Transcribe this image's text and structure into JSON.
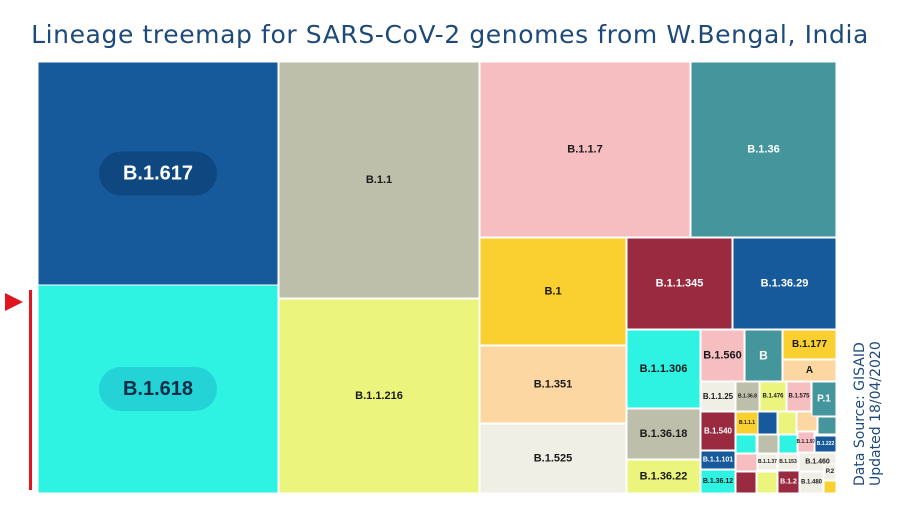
{
  "chart_data": {
    "type": "treemap",
    "title": "Lineage treemap for SARS-CoV-2 genomes from W.Bengal, India",
    "note": "Area values estimated from rectangle areas (relative units)",
    "nodes": [
      {
        "label": "B.1.617",
        "value": 545,
        "color": "#175a9c"
      },
      {
        "label": "B.1.618",
        "value": 483,
        "color": "#2ef2e2"
      },
      {
        "label": "B.1.1",
        "value": 474,
        "color": "#bebfaa"
      },
      {
        "label": "B.1.1.216",
        "value": 394,
        "color": "#ebf57e"
      },
      {
        "label": "B.1.1.7",
        "value": 368,
        "color": "#f7bec2"
      },
      {
        "label": "B.1.36",
        "value": 254,
        "color": "#45969c"
      },
      {
        "label": "B.1",
        "value": 151,
        "color": "#f9d02f"
      },
      {
        "label": "B.1.351",
        "value": 110,
        "color": "#fdd7a2"
      },
      {
        "label": "B.1.525",
        "value": 100,
        "color": "#f0efe6"
      },
      {
        "label": "B.1.1.345",
        "value": 70,
        "color": "#9a2a40"
      },
      {
        "label": "B.1.36.29",
        "value": 70,
        "color": "#175a9c"
      },
      {
        "label": "B.1.1.306",
        "value": 54,
        "color": "#2ef2e2"
      },
      {
        "label": "B.1.36.18",
        "value": 23,
        "color": "#bebfaa"
      },
      {
        "label": "B.1.36.22",
        "value": 22,
        "color": "#ebf57e"
      },
      {
        "label": "B.1.560",
        "value": 13,
        "color": "#f7bec2"
      },
      {
        "label": "B",
        "value": 8,
        "color": "#45969c"
      },
      {
        "label": "B.1.177",
        "value": 8,
        "color": "#f9d02f"
      },
      {
        "label": "A",
        "value": 6,
        "color": "#fdd7a2"
      },
      {
        "label": "B.1.1.25",
        "value": 6,
        "color": "#f0efe6"
      },
      {
        "label": "B.1.36.8",
        "value": 2,
        "color": "#bebfaa"
      },
      {
        "label": "B.1.476",
        "value": 2,
        "color": "#ebf57e"
      },
      {
        "label": "B.1.575",
        "value": 2,
        "color": "#f7bec2"
      },
      {
        "label": "P.1",
        "value": 5,
        "color": "#45969c"
      },
      {
        "label": "B.1.540",
        "value": 7,
        "color": "#9a2a40"
      },
      {
        "label": "B.1.1.101",
        "value": 4,
        "color": "#175a9c"
      },
      {
        "label": "B.1.36.12",
        "value": 4,
        "color": "#2ef2e2"
      },
      {
        "label": "B.1.1.1",
        "value": 2,
        "color": "#f9d02f"
      },
      {
        "label": "B.1.1.97",
        "value": 1,
        "color": "#f7bec2"
      },
      {
        "label": "B.1.222",
        "value": 1,
        "color": "#175a9c"
      },
      {
        "label": "B.1.1.37",
        "value": 1,
        "color": "#f0efe6"
      },
      {
        "label": "B.1.153",
        "value": 1,
        "color": "#f0efe6"
      },
      {
        "label": "B.1.460",
        "value": 2,
        "color": "#f0efe6"
      },
      {
        "label": "B.1.2",
        "value": 2,
        "color": "#9a2a40"
      },
      {
        "label": "B.1.480",
        "value": 1,
        "color": "#f0efe6"
      },
      {
        "label": "P.2",
        "value": 1,
        "color": "#f0efe6"
      }
    ],
    "unlabeled_fill_colors": [
      "#175a9c",
      "#2ef2e2",
      "#f9d02f",
      "#f7bec2",
      "#9a2a40",
      "#45969c",
      "#ebf57e",
      "#fdd7a2",
      "#bebfaa"
    ]
  },
  "source": {
    "line1": "Data Source: GISAID",
    "line2": "Updated 18/04/2020"
  },
  "marker": {
    "color": "#e0151f"
  }
}
